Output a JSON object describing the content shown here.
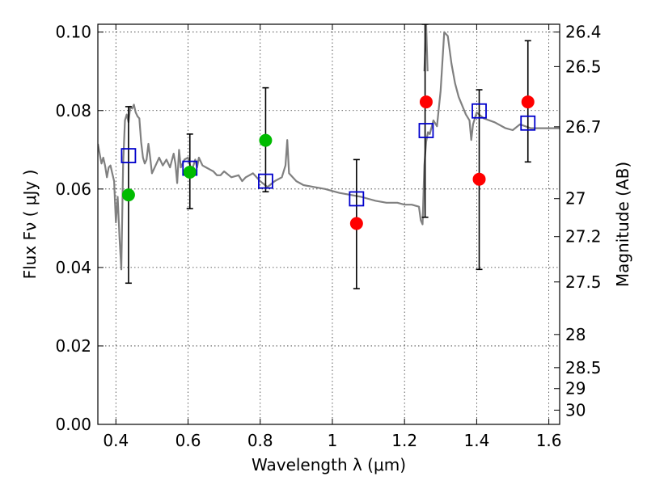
{
  "chart_data": {
    "type": "scatter",
    "title": "",
    "xlabel": "Wavelength  λ (μm)",
    "ylabel": "Flux  Fν  ( μJy )",
    "y2label": "Magnitude (AB)",
    "xlim": [
      0.35,
      1.63
    ],
    "ylim": [
      0.0,
      0.102
    ],
    "grid": true,
    "x_ticks": [
      {
        "value": 0.4,
        "label": "0.4"
      },
      {
        "value": 0.6,
        "label": "0.6"
      },
      {
        "value": 0.8,
        "label": "0.8"
      },
      {
        "value": 1.0,
        "label": "1"
      },
      {
        "value": 1.2,
        "label": "1.2"
      },
      {
        "value": 1.4,
        "label": "1.4"
      },
      {
        "value": 1.6,
        "label": "1.6"
      }
    ],
    "y_ticks": [
      {
        "value": 0.0,
        "label": "0.00"
      },
      {
        "value": 0.02,
        "label": "0.02"
      },
      {
        "value": 0.04,
        "label": "0.04"
      },
      {
        "value": 0.06,
        "label": "0.06"
      },
      {
        "value": 0.08,
        "label": "0.08"
      },
      {
        "value": 0.1,
        "label": "0.10"
      }
    ],
    "y2_ticks": [
      {
        "value": 26.4,
        "label": "26.4"
      },
      {
        "value": 26.5,
        "label": "26.5"
      },
      {
        "value": 26.7,
        "label": "26.7"
      },
      {
        "value": 27,
        "label": "27"
      },
      {
        "value": 27.2,
        "label": "27.2"
      },
      {
        "value": 27.5,
        "label": "27.5"
      },
      {
        "value": 28,
        "label": "28"
      },
      {
        "value": 28.5,
        "label": "28.5"
      },
      {
        "value": 29,
        "label": "29"
      },
      {
        "value": 30,
        "label": "30"
      }
    ],
    "series": [
      {
        "kind": "line",
        "color": "#808080",
        "x": [
          0.35,
          0.355,
          0.36,
          0.365,
          0.37,
          0.375,
          0.38,
          0.385,
          0.39,
          0.395,
          0.4,
          0.405,
          0.41,
          0.415,
          0.42,
          0.425,
          0.43,
          0.435,
          0.44,
          0.445,
          0.45,
          0.455,
          0.46,
          0.465,
          0.47,
          0.475,
          0.48,
          0.485,
          0.49,
          0.495,
          0.5,
          0.51,
          0.52,
          0.53,
          0.54,
          0.55,
          0.56,
          0.565,
          0.57,
          0.575,
          0.58,
          0.59,
          0.6,
          0.61,
          0.62,
          0.625,
          0.63,
          0.64,
          0.65,
          0.66,
          0.67,
          0.68,
          0.69,
          0.7,
          0.72,
          0.74,
          0.75,
          0.76,
          0.78,
          0.8,
          0.82,
          0.84,
          0.86,
          0.87,
          0.875,
          0.88,
          0.9,
          0.92,
          0.95,
          0.98,
          1.0,
          1.02,
          1.05,
          1.08,
          1.1,
          1.12,
          1.15,
          1.18,
          1.2,
          1.22,
          1.24,
          1.245,
          1.25,
          1.255,
          1.26,
          1.265,
          1.27,
          1.28,
          1.29,
          1.3,
          1.31,
          1.32,
          1.33,
          1.34,
          1.35,
          1.37,
          1.38,
          1.385,
          1.39,
          1.4,
          1.42,
          1.45,
          1.48,
          1.5,
          1.52,
          1.55,
          1.58,
          1.6,
          1.63
        ],
        "y": [
          0.0715,
          0.069,
          0.0665,
          0.068,
          0.066,
          0.063,
          0.0655,
          0.066,
          0.064,
          0.062,
          0.0515,
          0.058,
          0.0475,
          0.0395,
          0.066,
          0.0775,
          0.079,
          0.077,
          0.081,
          0.0805,
          0.0815,
          0.0795,
          0.0785,
          0.078,
          0.072,
          0.068,
          0.0665,
          0.0675,
          0.0715,
          0.068,
          0.064,
          0.066,
          0.068,
          0.066,
          0.0675,
          0.0655,
          0.069,
          0.0665,
          0.0615,
          0.07,
          0.0655,
          0.0675,
          0.068,
          0.0645,
          0.0675,
          0.0655,
          0.068,
          0.066,
          0.0655,
          0.065,
          0.0645,
          0.0635,
          0.0635,
          0.0645,
          0.063,
          0.0635,
          0.062,
          0.063,
          0.064,
          0.062,
          0.0605,
          0.062,
          0.063,
          0.066,
          0.0725,
          0.064,
          0.062,
          0.061,
          0.0605,
          0.06,
          0.0595,
          0.059,
          0.0585,
          0.058,
          0.0575,
          0.057,
          0.0565,
          0.0565,
          0.056,
          0.056,
          0.0555,
          0.052,
          0.051,
          0.066,
          0.072,
          0.0745,
          0.074,
          0.0775,
          0.076,
          0.085,
          0.1,
          0.099,
          0.092,
          0.087,
          0.0835,
          0.079,
          0.0775,
          0.0725,
          0.0765,
          0.0795,
          0.078,
          0.077,
          0.0755,
          0.075,
          0.0765,
          0.0755,
          0.0755,
          0.0755,
          0.0755
        ]
      },
      {
        "kind": "line",
        "color": "#808080",
        "x": [
          1.255,
          1.26,
          1.264
        ],
        "y": [
          0.09,
          0.102,
          0.09
        ]
      },
      {
        "kind": "errorbar",
        "color": "#000000",
        "x": [
          0.435,
          0.605,
          0.815,
          1.067,
          1.257,
          1.407,
          1.542
        ],
        "ylow": [
          0.036,
          0.055,
          0.0593,
          0.0346,
          0.0528,
          0.0395,
          0.0669
        ],
        "yhigh": [
          0.081,
          0.074,
          0.0858,
          0.0675,
          0.102,
          0.0853,
          0.0978
        ]
      },
      {
        "kind": "square",
        "color": "#0000cc",
        "x": [
          0.435,
          0.605,
          0.815,
          1.067,
          1.26,
          1.407,
          1.542
        ],
        "y": [
          0.0685,
          0.0653,
          0.062,
          0.0575,
          0.0749,
          0.0799,
          0.0768
        ]
      },
      {
        "kind": "circle",
        "color": "#00bb00",
        "x": [
          0.435,
          0.605,
          0.815
        ],
        "y": [
          0.0585,
          0.0643,
          0.0724
        ]
      },
      {
        "kind": "circle",
        "color": "#ff0000",
        "x": [
          1.067,
          1.26,
          1.407,
          1.542
        ],
        "y": [
          0.0512,
          0.0822,
          0.0625,
          0.0822
        ]
      }
    ]
  }
}
